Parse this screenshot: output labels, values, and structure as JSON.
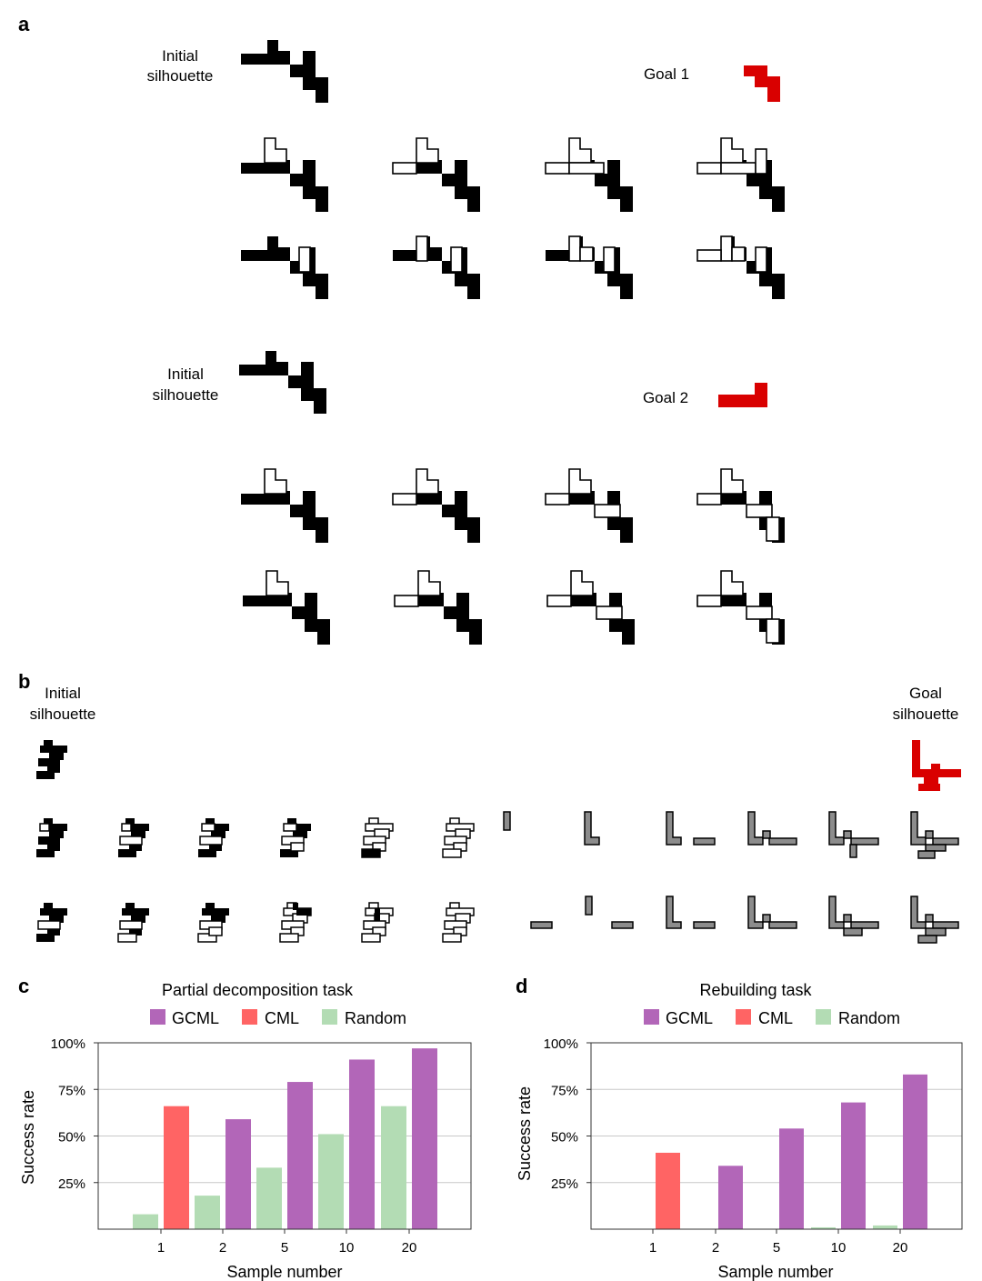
{
  "panels": {
    "a": {
      "letter": "a",
      "initial_label_1": "Initial",
      "initial_label_2": "silhouette",
      "goal1_label": "Goal 1",
      "goal2_label": "Goal 2"
    },
    "b": {
      "letter": "b",
      "initial_label_1": "Initial",
      "initial_label_2": "silhouette",
      "goal_label_1": "Goal",
      "goal_label_2": "silhouette"
    }
  },
  "colors": {
    "gcml": "#b266b8",
    "cml": "#ff6464",
    "random": "#b3dcb4",
    "goal": "#d90000",
    "block": "#000000",
    "build_block": "#8c8c8c"
  },
  "legend_labels": [
    "GCML",
    "CML",
    "Random"
  ],
  "chart_data": [
    {
      "type": "bar",
      "panel_letter": "c",
      "title": "Partial decomposition task",
      "xlabel": "Sample number",
      "ylabel": "Success rate",
      "categories": [
        "1",
        "2",
        "5",
        "10",
        "20"
      ],
      "ylim": [
        0,
        100
      ],
      "yticks": [
        "25%",
        "50%",
        "75%",
        "100%"
      ],
      "ytick_values": [
        25,
        50,
        75,
        100
      ],
      "grid": true,
      "legend_position": "top",
      "series": [
        {
          "name": "GCML",
          "values": [
            null,
            59,
            79,
            91,
            97
          ]
        },
        {
          "name": "CML",
          "values": [
            66,
            null,
            null,
            null,
            null
          ]
        },
        {
          "name": "Random",
          "values": [
            8,
            18,
            33,
            51,
            66
          ]
        }
      ]
    },
    {
      "type": "bar",
      "panel_letter": "d",
      "title": "Rebuilding task",
      "xlabel": "Sample number",
      "ylabel": "Success rate",
      "categories": [
        "1",
        "2",
        "5",
        "10",
        "20"
      ],
      "ylim": [
        0,
        100
      ],
      "yticks": [
        "25%",
        "50%",
        "75%",
        "100%"
      ],
      "ytick_values": [
        25,
        50,
        75,
        100
      ],
      "grid": true,
      "legend_position": "top",
      "series": [
        {
          "name": "GCML",
          "values": [
            null,
            34,
            54,
            68,
            83
          ]
        },
        {
          "name": "CML",
          "values": [
            41,
            null,
            null,
            null,
            null
          ]
        },
        {
          "name": "Random",
          "values": [
            0,
            0,
            0,
            1,
            2
          ]
        }
      ]
    }
  ]
}
